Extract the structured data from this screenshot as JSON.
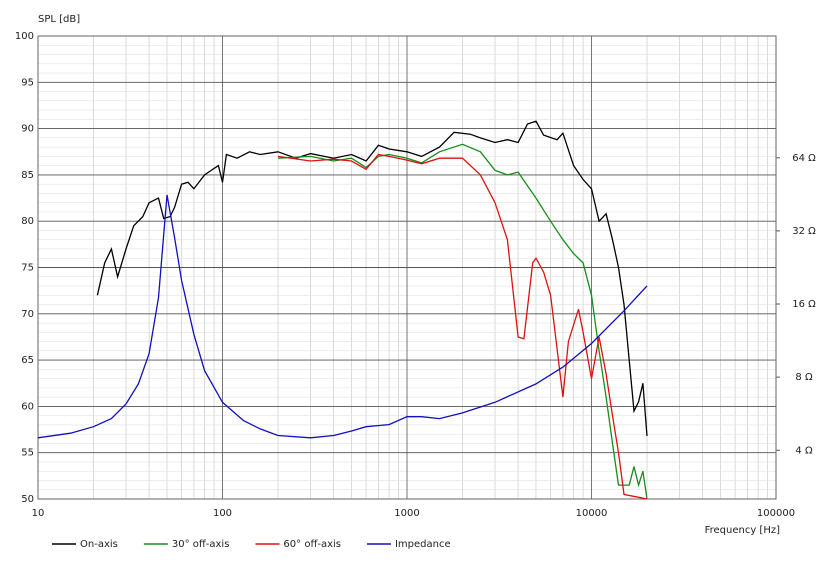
{
  "chart_data": {
    "type": "line",
    "y_label": "SPL [dB]",
    "x_label": "Frequency [Hz]",
    "xscale": "log",
    "xlim": [
      10,
      100000
    ],
    "xticks": [
      10,
      100,
      1000,
      10000,
      100000
    ],
    "ylim": [
      50,
      100
    ],
    "yticks": [
      50,
      55,
      60,
      65,
      70,
      75,
      80,
      85,
      90,
      95,
      100
    ],
    "y2scale": "log",
    "y2lim": [
      2.52,
      203
    ],
    "y2ticks": [
      {
        "value": 4,
        "label": "4 Ω"
      },
      {
        "value": 8,
        "label": "8 Ω"
      },
      {
        "value": 16,
        "label": "16 Ω"
      },
      {
        "value": 32,
        "label": "32 Ω"
      },
      {
        "value": 64,
        "label": "64 Ω"
      }
    ],
    "grid": true,
    "legend": "bottom",
    "series": [
      {
        "name": "On-axis",
        "color": "#000000",
        "x": [
          21,
          23,
          25,
          27,
          30,
          33,
          37,
          40,
          45,
          48,
          52,
          55,
          60,
          65,
          70,
          80,
          90,
          95,
          100,
          105,
          120,
          140,
          160,
          200,
          250,
          300,
          400,
          500,
          600,
          700,
          800,
          1000,
          1200,
          1500,
          1800,
          2200,
          2500,
          3000,
          3500,
          4000,
          4500,
          5000,
          5500,
          6500,
          7000,
          8000,
          9000,
          10000,
          11000,
          12000,
          13000,
          14000,
          15000,
          16000,
          17000,
          18000,
          19000,
          20000
        ],
        "values": [
          72,
          75.5,
          77,
          74,
          77,
          79.5,
          80.5,
          82,
          82.5,
          80.3,
          80.5,
          81.5,
          84,
          84.2,
          83.5,
          85,
          85.7,
          86,
          84.2,
          87.2,
          86.8,
          87.5,
          87.2,
          87.5,
          86.8,
          87.3,
          86.8,
          87.2,
          86.5,
          88.2,
          87.8,
          87.5,
          87,
          88,
          89.6,
          89.4,
          89,
          88.5,
          88.8,
          88.5,
          90.5,
          90.8,
          89.3,
          88.8,
          89.5,
          86,
          84.5,
          83.5,
          80,
          80.8,
          78,
          75,
          71,
          65,
          59.5,
          60.5,
          62.5,
          56.8
        ]
      },
      {
        "name": "30° off-axis",
        "color": "#1a8c1a",
        "x": [
          200,
          300,
          400,
          500,
          600,
          700,
          800,
          1000,
          1200,
          1500,
          2000,
          2500,
          3000,
          3500,
          4000,
          5000,
          6000,
          7000,
          8000,
          9000,
          10000,
          11000,
          12000,
          13000,
          14000,
          16000,
          17000,
          18000,
          19000,
          20000
        ],
        "values": [
          86.8,
          87,
          86.5,
          86.8,
          85.8,
          87,
          87.2,
          86.8,
          86.3,
          87.5,
          88.3,
          87.5,
          85.5,
          85,
          85.3,
          82.5,
          80,
          78,
          76.5,
          75.5,
          72,
          66,
          61,
          56,
          51.5,
          51.5,
          53.5,
          51.5,
          53,
          50
        ]
      },
      {
        "name": "60° off-axis",
        "color": "#e01010",
        "x": [
          200,
          300,
          400,
          500,
          600,
          700,
          800,
          1000,
          1200,
          1500,
          2000,
          2500,
          3000,
          3500,
          4000,
          4300,
          4800,
          5000,
          5500,
          6000,
          7000,
          7500,
          8500,
          9000,
          10000,
          11000,
          12000,
          13000,
          14000,
          15000,
          20000
        ],
        "values": [
          87,
          86.5,
          86.7,
          86.5,
          85.6,
          87.2,
          87,
          86.6,
          86.2,
          86.8,
          86.8,
          85,
          82,
          78,
          67.5,
          67.3,
          75.5,
          76,
          74.5,
          72,
          61,
          67,
          70.5,
          68,
          63,
          67.5,
          63.5,
          59,
          55,
          50.5,
          50
        ]
      },
      {
        "name": "Impedance",
        "color": "#1010c0",
        "axis": "y2",
        "x": [
          10,
          15,
          20,
          25,
          30,
          35,
          40,
          45,
          50,
          55,
          60,
          70,
          80,
          100,
          130,
          160,
          200,
          300,
          400,
          500,
          600,
          800,
          1000,
          1200,
          1500,
          2000,
          3000,
          5000,
          7000,
          10000,
          15000,
          20000
        ],
        "values": [
          4.5,
          4.7,
          5.0,
          5.4,
          6.2,
          7.5,
          10,
          17,
          45,
          30,
          20,
          12,
          8.5,
          6.3,
          5.3,
          4.9,
          4.6,
          4.5,
          4.6,
          4.8,
          5.0,
          5.1,
          5.5,
          5.5,
          5.4,
          5.7,
          6.3,
          7.5,
          8.8,
          11,
          15,
          19
        ]
      }
    ]
  }
}
